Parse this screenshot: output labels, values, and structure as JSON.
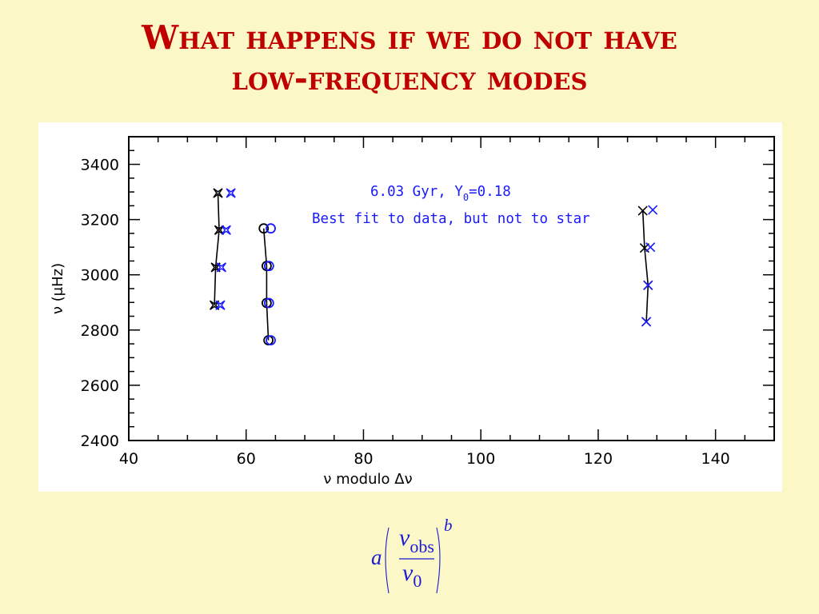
{
  "slide": {
    "title_line1": "What happens if we do not have",
    "title_line2": "low-frequency modes"
  },
  "colors": {
    "background": "#fbf7c6",
    "title": "#c00000",
    "model": "#000000",
    "observed": "#1a1aff"
  },
  "chart_data": {
    "type": "scatter",
    "xlabel": "ν modulo Δν",
    "ylabel": "ν (μHz)",
    "xlim": [
      40,
      150
    ],
    "ylim": [
      2400,
      3500
    ],
    "x_ticks": [
      40,
      60,
      80,
      100,
      120,
      140
    ],
    "y_ticks": [
      2400,
      2600,
      2800,
      3000,
      3200,
      3400
    ],
    "annotations": {
      "line1_prefix": "6.03 Gyr, Y",
      "line1_sub": "0",
      "line1_suffix": "=0.18",
      "line2": "Best fit to data, but not to star"
    },
    "series": [
      {
        "group": "l=0",
        "source": "model",
        "marker": "star4",
        "color": "#000000",
        "connected": true,
        "points": [
          [
            55.2,
            3296
          ],
          [
            55.4,
            3162
          ],
          [
            54.8,
            3027
          ],
          [
            54.6,
            2890
          ]
        ]
      },
      {
        "group": "l=0",
        "source": "observed",
        "marker": "star4",
        "color": "#1a1aff",
        "connected": false,
        "points": [
          [
            57.4,
            3296
          ],
          [
            56.6,
            3162
          ],
          [
            55.8,
            3027
          ],
          [
            55.6,
            2890
          ]
        ]
      },
      {
        "group": "l=1",
        "source": "model",
        "marker": "circle",
        "color": "#000000",
        "connected": true,
        "points": [
          [
            63.0,
            3168
          ],
          [
            63.5,
            3032
          ],
          [
            63.5,
            2898
          ],
          [
            63.8,
            2763
          ]
        ]
      },
      {
        "group": "l=1",
        "source": "observed",
        "marker": "circle",
        "color": "#1a1aff",
        "connected": false,
        "points": [
          [
            64.2,
            3168
          ],
          [
            63.9,
            3032
          ],
          [
            63.9,
            2898
          ],
          [
            64.2,
            2763
          ]
        ]
      },
      {
        "group": "l=2",
        "source": "model",
        "marker": "x",
        "color": "#000000",
        "connected": true,
        "points": [
          [
            127.6,
            3232
          ],
          [
            127.9,
            3097
          ],
          [
            128.5,
            2962
          ],
          [
            128.2,
            2830
          ]
        ]
      },
      {
        "group": "l=2",
        "source": "observed",
        "marker": "x",
        "color": "#1a1aff",
        "connected": false,
        "points": [
          [
            129.3,
            3235
          ],
          [
            128.9,
            3100
          ],
          [
            128.5,
            2962
          ],
          [
            128.2,
            2830
          ]
        ]
      }
    ]
  },
  "formula": {
    "coefficient": "a",
    "numerator": "ν",
    "numerator_sub": "obs",
    "denominator": "ν",
    "denominator_sub": "0",
    "exponent": "b"
  }
}
